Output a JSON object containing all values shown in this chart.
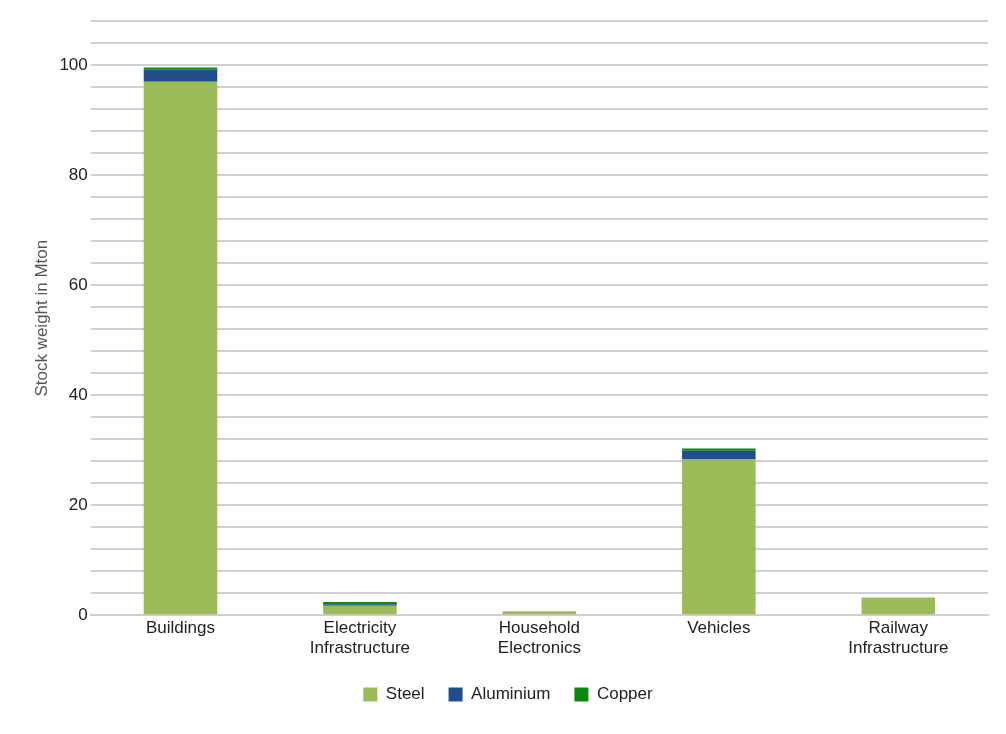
{
  "chart_data": {
    "type": "bar",
    "stacked": true,
    "ylabel": "Stock weight in Mton",
    "categories": [
      "Buildings",
      "Electricity Infrastructure",
      "Household Electronics",
      "Vehicles",
      "Railway Infrastructure"
    ],
    "series": [
      {
        "name": "Steel",
        "color": "#9bbb59",
        "values": [
          97,
          1.7,
          0.7,
          28.4,
          3.2
        ]
      },
      {
        "name": "Aluminium",
        "color": "#1f4e8c",
        "values": [
          2.2,
          0.3,
          0,
          1.5,
          0
        ]
      },
      {
        "name": "Copper",
        "color": "#0a8a0a",
        "values": [
          0.4,
          0.4,
          0,
          0.4,
          0
        ]
      }
    ],
    "ylim": [
      0,
      108
    ],
    "yticks": [
      0,
      {
        "value": 4,
        "label": null
      },
      {
        "value": 8,
        "label": null
      },
      {
        "value": 12,
        "label": null
      },
      {
        "value": 16,
        "label": null
      },
      20,
      {
        "value": 24,
        "label": null
      },
      {
        "value": 28,
        "label": null
      },
      {
        "value": 32,
        "label": null
      },
      {
        "value": 36,
        "label": null
      },
      40,
      {
        "value": 44,
        "label": null
      },
      {
        "value": 48,
        "label": null
      },
      {
        "value": 52,
        "label": null
      },
      {
        "value": 56,
        "label": null
      },
      60,
      {
        "value": 64,
        "label": null
      },
      {
        "value": 68,
        "label": null
      },
      {
        "value": 72,
        "label": null
      },
      {
        "value": 76,
        "label": null
      },
      80,
      {
        "value": 84,
        "label": null
      },
      {
        "value": 88,
        "label": null
      },
      {
        "value": 92,
        "label": null
      },
      {
        "value": 96,
        "label": null
      },
      100,
      {
        "value": 104,
        "label": null
      },
      {
        "value": 108,
        "label": null
      }
    ],
    "grid": "y",
    "legend": "bottom"
  }
}
